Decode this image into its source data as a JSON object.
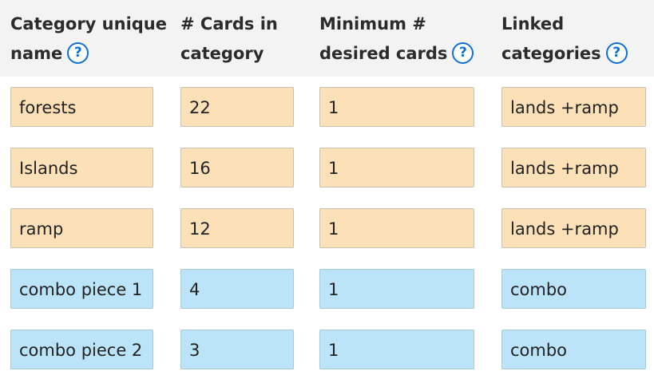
{
  "headers": {
    "category_name": {
      "line1": "Category unique",
      "line2": "name"
    },
    "cards_in_category": {
      "line1": "# Cards in",
      "line2": "category"
    },
    "minimum_desired": {
      "line1": "Minimum #",
      "line2": "desired cards"
    },
    "linked_categories": {
      "line1": "Linked",
      "line2": "categories"
    },
    "help_glyph": "?"
  },
  "rows": [
    {
      "name": "forests",
      "cards": "22",
      "minimum": "1",
      "linked": "lands +ramp",
      "color": "#fce1b8"
    },
    {
      "name": "Islands",
      "cards": "16",
      "minimum": "1",
      "linked": "lands +ramp",
      "color": "#fce1b8"
    },
    {
      "name": "ramp",
      "cards": "12",
      "minimum": "1",
      "linked": "lands +ramp",
      "color": "#fce1b8"
    },
    {
      "name": "combo piece 1",
      "cards": "4",
      "minimum": "1",
      "linked": "combo",
      "color": "#bce4f8"
    },
    {
      "name": "combo piece 2",
      "cards": "3",
      "minimum": "1",
      "linked": "combo",
      "color": "#bce4f8"
    }
  ],
  "colors": {
    "header_background": "#f3f3f3",
    "help_icon": "#0f6fd6",
    "orange_row": "#fce1b8",
    "blue_row": "#bce4f8"
  }
}
